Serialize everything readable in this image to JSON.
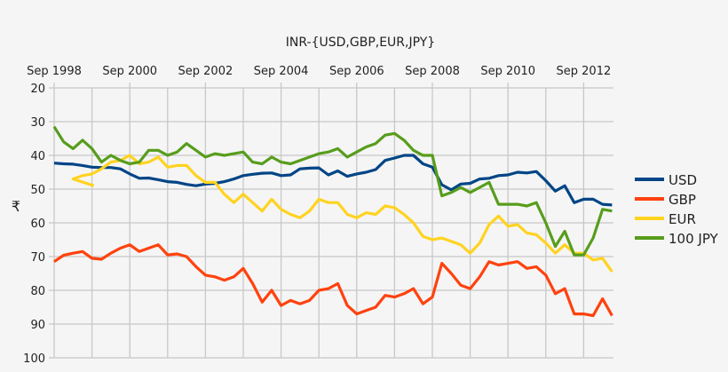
{
  "chart_data": {
    "type": "line",
    "title": "INR-{USD,GBP,EUR,JPY}",
    "ylabel": "₹",
    "xlabel": "",
    "ylim": [
      20,
      100
    ],
    "y_inverted": true,
    "yticks": [
      "20",
      "30",
      "40",
      "50",
      "60",
      "70",
      "80",
      "90",
      "100"
    ],
    "xticks": [
      "Sep 1998",
      "Sep 2000",
      "Sep 2002",
      "Sep 2004",
      "Sep 2006",
      "Sep 2008",
      "Sep 2010",
      "Sep 2012"
    ],
    "xaxis_position": "top",
    "grid": true,
    "legend": "right",
    "x": [
      "1998-09",
      "1998-12",
      "1999-03",
      "1999-06",
      "1999-09",
      "1999-12",
      "2000-03",
      "2000-06",
      "2000-09",
      "2000-12",
      "2001-03",
      "2001-06",
      "2001-09",
      "2001-12",
      "2002-03",
      "2002-06",
      "2002-09",
      "2002-12",
      "2003-03",
      "2003-06",
      "2003-09",
      "2003-12",
      "2004-03",
      "2004-06",
      "2004-09",
      "2004-12",
      "2005-03",
      "2005-06",
      "2005-09",
      "2005-12",
      "2006-03",
      "2006-06",
      "2006-09",
      "2006-12",
      "2007-03",
      "2007-06",
      "2007-09",
      "2007-12",
      "2008-03",
      "2008-06",
      "2008-09",
      "2008-12",
      "2009-03",
      "2009-06",
      "2009-09",
      "2009-12",
      "2010-03",
      "2010-06",
      "2010-09",
      "2010-12",
      "2011-03",
      "2011-06",
      "2011-09",
      "2011-12",
      "2012-03",
      "2012-06",
      "2012-09",
      "2012-12",
      "2013-03",
      "2013-06"
    ],
    "series": [
      {
        "name": "USD",
        "color": "#004586",
        "values": [
          42.3,
          42.5,
          42.6,
          43,
          43.5,
          43.6,
          43.6,
          44,
          45.5,
          46.8,
          46.7,
          47.2,
          47.8,
          48,
          48.6,
          49,
          48.5,
          48.3,
          47.8,
          47,
          46,
          45.6,
          45.3,
          45.2,
          46,
          45.8,
          44,
          43.8,
          43.7,
          45.8,
          44.6,
          46.2,
          45.5,
          45,
          44.2,
          41.5,
          40.8,
          40,
          40,
          42.5,
          43.5,
          48.7,
          50.2,
          48.5,
          48.3,
          47,
          46.8,
          46,
          45.8,
          45,
          45.2,
          44.8,
          47.5,
          50.6,
          49,
          54,
          53,
          53,
          54.5,
          54.7
        ]
      },
      {
        "name": "GBP",
        "color": "#ff420e",
        "values": [
          71.5,
          69.6,
          69,
          68.5,
          70.5,
          70.8,
          69,
          67.5,
          66.5,
          68.5,
          67.5,
          66.5,
          69.5,
          69.2,
          70,
          73,
          75.5,
          76,
          77,
          76,
          73.5,
          78,
          83.5,
          80,
          84.5,
          83,
          84,
          83,
          80,
          79.5,
          78,
          84.5,
          87,
          86,
          85,
          81.5,
          82,
          81,
          79.5,
          84,
          82,
          72,
          75,
          78.5,
          79.5,
          76,
          71.5,
          72.5,
          72,
          71.5,
          73.5,
          73,
          75.5,
          81,
          79.5,
          87,
          87,
          87.5,
          82.5,
          87.5
        ]
      },
      {
        "name": "EUR",
        "color": "#ffd320",
        "values": [
          null,
          49,
          47,
          46,
          45.5,
          44,
          42,
          41.5,
          40,
          42.5,
          42,
          40.5,
          43.5,
          43,
          43,
          46,
          48,
          48,
          51.5,
          54,
          51.5,
          54,
          56.5,
          53,
          56,
          57.5,
          58.5,
          56.5,
          53,
          54,
          54,
          57.5,
          58.5,
          57,
          57.5,
          55,
          55.5,
          57.5,
          60,
          64,
          65,
          64.5,
          65.5,
          66.5,
          69,
          66,
          60.5,
          58,
          61,
          60.5,
          63,
          63.5,
          66,
          69,
          66.5,
          69,
          69,
          71,
          70.5,
          74.5
        ]
      },
      {
        "name": "100 JPY",
        "color": "#579d1c",
        "values": [
          31.5,
          36,
          38,
          35.5,
          38,
          42,
          40,
          41.5,
          42.5,
          42,
          38.5,
          38.5,
          40,
          39,
          36.5,
          38.5,
          40.5,
          39.5,
          40,
          39.5,
          39,
          42,
          42.5,
          40.5,
          42,
          42.5,
          41.5,
          40.5,
          39.5,
          39,
          38,
          40.5,
          39,
          37.5,
          36.5,
          34,
          33.5,
          35.5,
          38.5,
          40,
          40,
          52,
          51,
          49.5,
          51,
          49.5,
          48,
          54.5,
          54.5,
          54.5,
          55,
          54,
          60,
          67,
          62.5,
          69.5,
          69.5,
          64.5,
          56,
          56.5
        ]
      }
    ]
  }
}
